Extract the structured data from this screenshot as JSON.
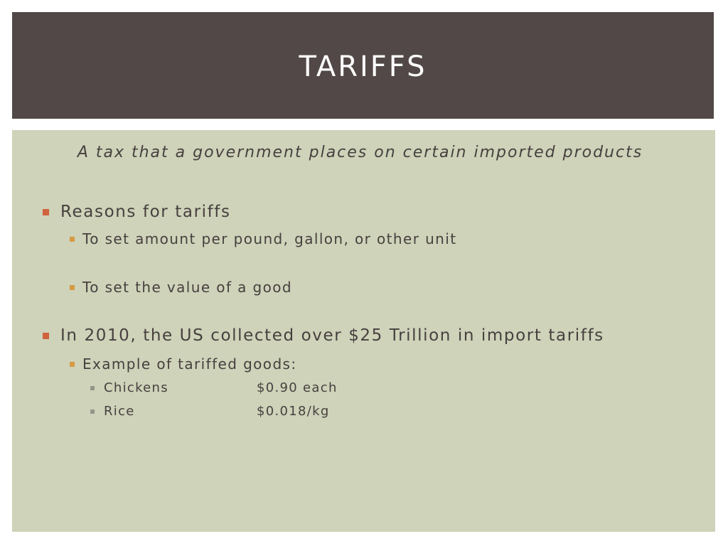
{
  "slide": {
    "title": "Tariffs",
    "subtitle": "A tax that a government places on certain imported products",
    "bullets": [
      {
        "text": "Reasons for tariffs",
        "sub": [
          "To set amount per pound, gallon, or other unit",
          "To set the value of a good"
        ]
      },
      {
        "text": "In 2010, the US collected over $25 Trillion in import tariffs",
        "sub": [
          {
            "text": "Example of tariffed goods:",
            "items": [
              {
                "name": "Chickens",
                "price": "$0.90 each"
              },
              {
                "name": "Rice",
                "price": "$0.018/kg"
              }
            ]
          }
        ]
      }
    ]
  },
  "colors": {
    "title_bar": "#524847",
    "content_bg": "#ced3b9",
    "bullet_level1": "#d0623e",
    "bullet_level2": "#d69a43",
    "bullet_level3": "#93958a",
    "text": "#47403f"
  }
}
